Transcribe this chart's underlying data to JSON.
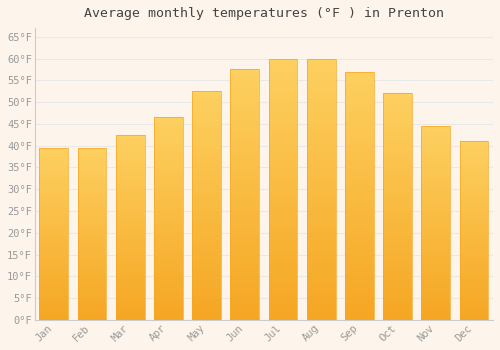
{
  "title": "Average monthly temperatures (°F ) in Prenton",
  "months": [
    "Jan",
    "Feb",
    "Mar",
    "Apr",
    "May",
    "Jun",
    "Jul",
    "Aug",
    "Sep",
    "Oct",
    "Nov",
    "Dec"
  ],
  "values": [
    39.5,
    39.5,
    42.5,
    46.5,
    52.5,
    57.5,
    60.0,
    60.0,
    57.0,
    52.0,
    44.5,
    41.0
  ],
  "bar_color_top": "#FDD060",
  "bar_color_bottom": "#F5A623",
  "background_color": "#FDF5EC",
  "grid_color": "#E8E8E8",
  "tick_label_color": "#999999",
  "title_color": "#444444",
  "ylim": [
    0,
    67
  ],
  "yticks": [
    0,
    5,
    10,
    15,
    20,
    25,
    30,
    35,
    40,
    45,
    50,
    55,
    60,
    65
  ],
  "ytick_labels": [
    "0°F",
    "5°F",
    "10°F",
    "15°F",
    "20°F",
    "25°F",
    "30°F",
    "35°F",
    "40°F",
    "45°F",
    "50°F",
    "55°F",
    "60°F",
    "65°F"
  ],
  "bar_width": 0.75
}
